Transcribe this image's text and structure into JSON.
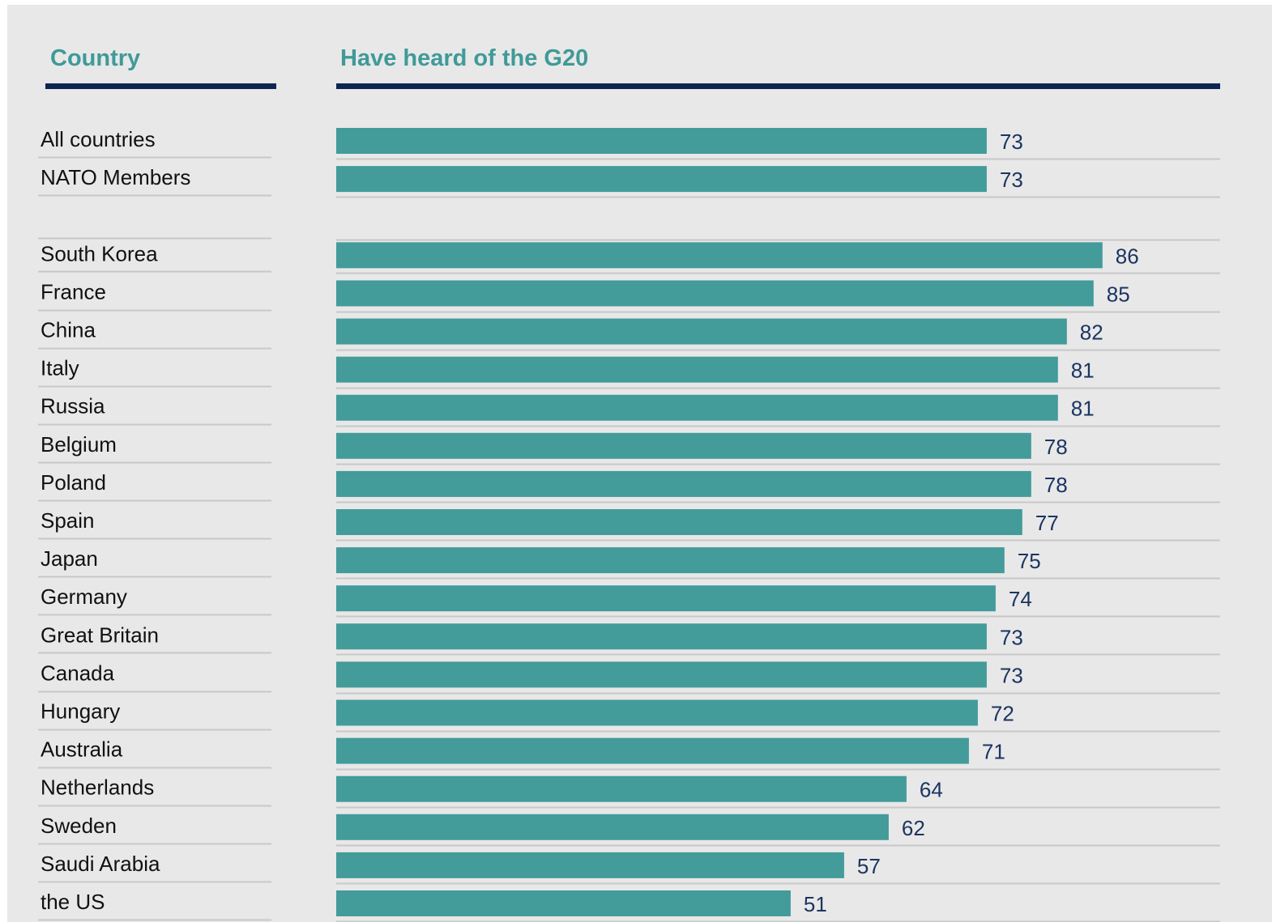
{
  "headers": {
    "country": "Country",
    "measure": "Have heard of the G20"
  },
  "colors": {
    "bar": "#439b9a",
    "header_text": "#3f9a98",
    "header_rule": "#0d2650",
    "value_text": "#1c3461",
    "label_text": "#111111",
    "separator": "#c8c8c8",
    "background": "#e8e8e8"
  },
  "chart_data": {
    "type": "bar",
    "orientation": "horizontal",
    "xlabel": "Have heard of the G20",
    "ylabel": "Country",
    "xlim": [
      0,
      100
    ],
    "grid": false,
    "groups": [
      {
        "categories": [
          "All countries",
          "NATO Members"
        ],
        "values": [
          73,
          73
        ]
      },
      {
        "categories": [
          "South Korea",
          "France",
          "China",
          "Italy",
          "Russia",
          "Belgium",
          "Poland",
          "Spain",
          "Japan",
          "Germany",
          "Great Britain",
          "Canada",
          "Hungary",
          "Australia",
          "Netherlands",
          "Sweden",
          "Saudi Arabia",
          "the US"
        ],
        "values": [
          86,
          85,
          82,
          81,
          81,
          78,
          78,
          77,
          75,
          74,
          73,
          73,
          72,
          71,
          64,
          62,
          57,
          51
        ]
      }
    ]
  }
}
